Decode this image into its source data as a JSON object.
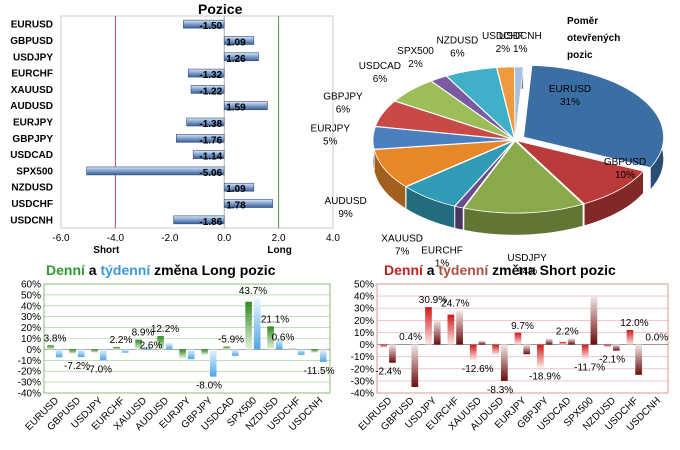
{
  "chart_data": [
    {
      "type": "bar",
      "title": "Pozice",
      "orientation": "horizontal",
      "categories": [
        "EURUSD",
        "GBPUSD",
        "USDJPY",
        "EURCHF",
        "XAUUSD",
        "AUDUSD",
        "EURJPY",
        "GBPJPY",
        "USDCAD",
        "SPX500",
        "NZDUSD",
        "USDCHF",
        "USDCNH"
      ],
      "values": [
        -1.5,
        1.09,
        1.26,
        -1.32,
        -1.22,
        1.59,
        -1.38,
        -1.76,
        -1.14,
        -5.06,
        1.09,
        1.78,
        -1.86
      ],
      "value_labels": [
        "-1.50",
        "1.09",
        "1.26",
        "-1.32",
        "-1.22",
        "1.59",
        "-1.38",
        "-1.76",
        "-1.14",
        "-5.06",
        "1.09",
        "1.78",
        "-1.86"
      ],
      "xlim": [
        -6.0,
        4.0
      ],
      "xticks": [
        "-6.0",
        "-4.0",
        "-2.0",
        "0.0",
        "2.0",
        "4.0"
      ],
      "xtick_values": [
        -6,
        -4,
        -2,
        0,
        2,
        4
      ],
      "annotations": [
        "Short",
        "Long"
      ],
      "threshold_lines": [
        {
          "value": -4,
          "color": "#c0504d"
        },
        {
          "value": 2,
          "color": "#4f9a3c"
        }
      ]
    },
    {
      "type": "pie",
      "title_lines": [
        "Poměr",
        "otevřených",
        "pozic"
      ],
      "slices": [
        {
          "name": "EURUSD",
          "value": 31,
          "label": "31%",
          "color": "#3a6ea5"
        },
        {
          "name": "GBPUSD",
          "value": 10,
          "label": "10%",
          "color": "#b83a3a"
        },
        {
          "name": "USDJPY",
          "value": 14,
          "label": "14%",
          "color": "#8aa94a"
        },
        {
          "name": "EURCHF",
          "value": 1,
          "label": "1%",
          "color": "#6a4b8c"
        },
        {
          "name": "XAUUSD",
          "value": 7,
          "label": "7%",
          "color": "#2f9bb5"
        },
        {
          "name": "AUDUSD",
          "value": 9,
          "label": "9%",
          "color": "#e8872a"
        },
        {
          "name": "EURJPY",
          "value": 5,
          "label": "5%",
          "color": "#4a7fc0"
        },
        {
          "name": "GBPJPY",
          "value": 6,
          "label": "6%",
          "color": "#c84a46"
        },
        {
          "name": "USDCAD",
          "value": 6,
          "label": "6%",
          "color": "#9cbd5a"
        },
        {
          "name": "SPX500",
          "value": 2,
          "label": "2%",
          "color": "#7a5aa0"
        },
        {
          "name": "NZDUSD",
          "value": 6,
          "label": "6%",
          "color": "#3fb0c8"
        },
        {
          "name": "USDCHF",
          "value": 2,
          "label": "2%",
          "color": "#f09a40"
        },
        {
          "name": "USDCNH",
          "value": 1,
          "label": "1%",
          "color": "#a6c0e0"
        }
      ]
    },
    {
      "type": "bar",
      "title_parts": [
        {
          "text": "Denní",
          "color": "#2e9a30"
        },
        {
          "text": " a ",
          "color": "#000000"
        },
        {
          "text": "týdenní",
          "color": "#3a9ad8"
        },
        {
          "text": " změna Long pozic",
          "color": "#000000"
        }
      ],
      "categories": [
        "EURUSD",
        "GBPUSD",
        "USDJPY",
        "EURCHF",
        "XAUUSD",
        "AUDUSD",
        "EURJPY",
        "GBPJPY",
        "USDCAD",
        "SPX500",
        "NZDUSD",
        "USDCHF",
        "USDCNH"
      ],
      "series": [
        {
          "name": "Denní",
          "color": "#3a9a2a",
          "values": [
            3.8,
            -4,
            -3,
            2.2,
            8.9,
            12.2,
            -8.0,
            -5,
            2.6,
            43.7,
            21.1,
            0.6,
            -3
          ]
        },
        {
          "name": "týdenní",
          "color": "#5aaee8",
          "values": [
            -7.2,
            -7.0,
            -10,
            -3,
            2.6,
            6,
            -9,
            -25,
            -5.9,
            47,
            10,
            -5,
            -11.5
          ]
        }
      ],
      "value_labels": [
        {
          "i": 0,
          "text": "3.8%"
        },
        {
          "i": 1,
          "text": "-7.2%"
        },
        {
          "i": 2,
          "text": "-7.0%"
        },
        {
          "i": 3,
          "text": "2.2%"
        },
        {
          "i": 4,
          "text": "8.9%"
        },
        {
          "i": 4,
          "text": "2.6%"
        },
        {
          "i": 5,
          "text": "12.2%"
        },
        {
          "i": 7,
          "text": "-8.0%"
        },
        {
          "i": 8,
          "text": "-5.9%"
        },
        {
          "i": 9,
          "text": "43.7%"
        },
        {
          "i": 10,
          "text": "21.1%"
        },
        {
          "i": 10,
          "text": "0.6%"
        },
        {
          "i": 12,
          "text": "-11.5%"
        }
      ],
      "ylim": [
        -40,
        60
      ],
      "yticks": [
        "60%",
        "50%",
        "40%",
        "30%",
        "20%",
        "10%",
        "0%",
        "-10%",
        "-20%",
        "-30%",
        "-40%"
      ]
    },
    {
      "type": "bar",
      "title_parts": [
        {
          "text": "Denní",
          "color": "#c02020"
        },
        {
          "text": " a ",
          "color": "#000000"
        },
        {
          "text": "týdenní",
          "color": "#b05040"
        },
        {
          "text": " změna Short pozic",
          "color": "#000000"
        }
      ],
      "categories": [
        "EURUSD",
        "GBPUSD",
        "USDJPY",
        "EURCHF",
        "XAUUSD",
        "AUDUSD",
        "EURJPY",
        "GBPJPY",
        "USDCAD",
        "SPX500",
        "NZDUSD",
        "USDCHF",
        "USDCNH"
      ],
      "series": [
        {
          "name": "Denní",
          "color": "#d42020",
          "values": [
            -2.4,
            0.4,
            30.9,
            24.7,
            -12.6,
            -8.3,
            9.7,
            -18.9,
            2.2,
            -11.7,
            -2.1,
            12.0,
            0.0
          ]
        },
        {
          "name": "týdenní",
          "color": "#7a1010",
          "values": [
            -15,
            -35,
            20,
            28,
            3,
            -30,
            -8,
            5,
            5,
            40,
            -5,
            -25,
            0.0
          ]
        }
      ],
      "value_labels": [
        {
          "i": 0,
          "text": "-2.4%"
        },
        {
          "i": 1,
          "text": "0.4%"
        },
        {
          "i": 2,
          "text": "30.9%"
        },
        {
          "i": 3,
          "text": "24.7%"
        },
        {
          "i": 4,
          "text": "-12.6%"
        },
        {
          "i": 5,
          "text": "-8.3%"
        },
        {
          "i": 6,
          "text": "9.7%"
        },
        {
          "i": 7,
          "text": "-18.9%"
        },
        {
          "i": 8,
          "text": "2.2%"
        },
        {
          "i": 9,
          "text": "-11.7%"
        },
        {
          "i": 10,
          "text": "-2.1%"
        },
        {
          "i": 11,
          "text": "12.0%"
        },
        {
          "i": 12,
          "text": "0.0%"
        }
      ],
      "ylim": [
        -40,
        50
      ],
      "yticks": [
        "50%",
        "40%",
        "30%",
        "20%",
        "10%",
        "0%",
        "-10%",
        "-20%",
        "-30%",
        "-40%"
      ]
    }
  ]
}
